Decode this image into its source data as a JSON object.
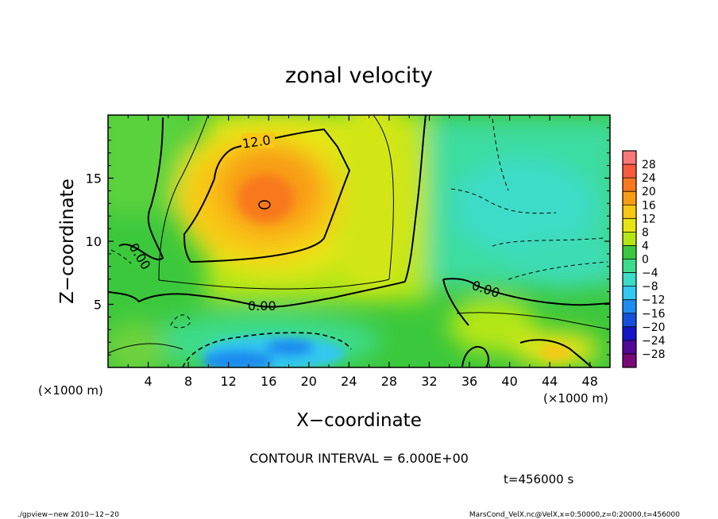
{
  "chart_data": {
    "type": "heatmap",
    "title": "zonal velocity",
    "xlabel": "X−coordinate",
    "ylabel": "Z−coordinate",
    "x_unit_left": "(×1000 m)",
    "x_unit_right": "(×1000 m)",
    "xlim": [
      0,
      50
    ],
    "ylim": [
      0,
      20
    ],
    "xticks": [
      "4",
      "8",
      "12",
      "16",
      "20",
      "24",
      "28",
      "32",
      "36",
      "40",
      "44",
      "48"
    ],
    "xtick_values": [
      4,
      8,
      12,
      16,
      20,
      24,
      28,
      32,
      36,
      40,
      44,
      48
    ],
    "yticks": [
      "5",
      "10",
      "15"
    ],
    "ytick_values": [
      5,
      10,
      15
    ],
    "colorbar": {
      "levels": [
        "28",
        "24",
        "20",
        "16",
        "12",
        "8",
        "4",
        "0",
        "−4",
        "−8",
        "−12",
        "−16",
        "−20",
        "−24",
        "−28"
      ],
      "colors": [
        "#fa7878",
        "#f85a3c",
        "#f8781e",
        "#f89c14",
        "#f8c814",
        "#e6e614",
        "#b4e614",
        "#3cc83c",
        "#3cdc8c",
        "#3cdcc8",
        "#32c8f0",
        "#1e8cf0",
        "#1450dc",
        "#1414c8",
        "#500a96",
        "#780a78"
      ]
    },
    "contour_labels": [
      "12.0",
      "0.00",
      "0.00",
      "0.00"
    ],
    "grid": false,
    "annotations": {
      "contour_interval": "CONTOUR INTERVAL = 6.000E+00",
      "time": "t=456000 s"
    }
  },
  "footer": {
    "left": "./gpview−new   2010−12−20",
    "right": "MarsCond_VelX.nc@VelX,x=0:50000,z=0:20000,t=456000"
  }
}
